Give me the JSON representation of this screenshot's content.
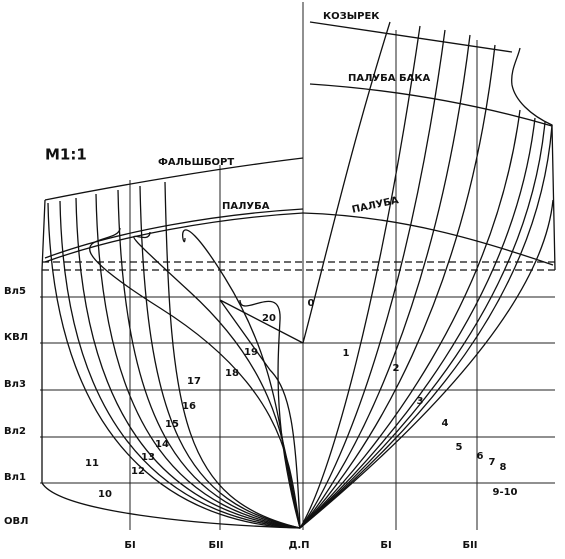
{
  "scale": "М1:1",
  "labels": {
    "visor": "КОЗЫРЕК",
    "forecastle_deck": "ПАЛУБА  БАКА",
    "bulwark": "ФАЛЬШБОРТ",
    "deck_left": "ПАЛУБА",
    "deck_right": "ПАЛУБА"
  },
  "waterlines": [
    "Вл5",
    "КВЛ",
    "Вл3",
    "Вл2",
    "Вл1",
    "ОВЛ"
  ],
  "buttocks": [
    "БI",
    "БII",
    "Д.П",
    "БI",
    "БII"
  ],
  "stations": [
    "0",
    "1",
    "2",
    "3",
    "4",
    "5",
    "6",
    "7",
    "8",
    "9-10",
    "10",
    "11",
    "12",
    "13",
    "14",
    "15",
    "16",
    "17",
    "18",
    "19",
    "20"
  ]
}
